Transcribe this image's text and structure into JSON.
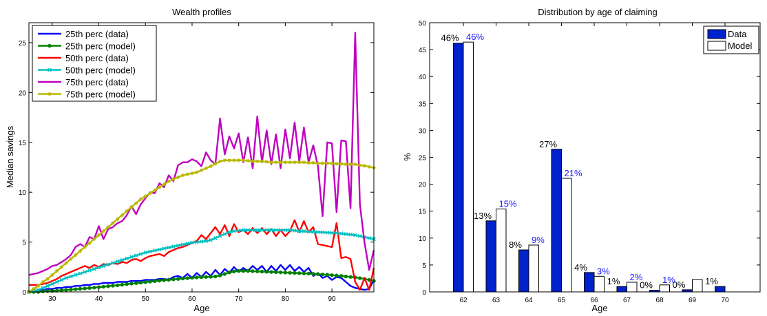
{
  "chart_data": [
    {
      "type": "line",
      "title": "Wealth profiles",
      "xlabel": "Age",
      "ylabel": "Median savings",
      "xlim": [
        25,
        99
      ],
      "ylim": [
        0,
        27
      ],
      "xticks": [
        30,
        40,
        50,
        60,
        70,
        80,
        90
      ],
      "yticks": [
        0,
        5,
        10,
        15,
        20,
        25
      ],
      "grid": false,
      "legend_position": "top-left",
      "series": [
        {
          "name": "25th perc (data)",
          "color": "#0000ff",
          "marker": "none",
          "x": [
            25,
            26,
            27,
            28,
            29,
            30,
            31,
            32,
            33,
            34,
            35,
            36,
            37,
            38,
            39,
            40,
            41,
            42,
            43,
            44,
            45,
            46,
            47,
            48,
            49,
            50,
            51,
            52,
            53,
            54,
            55,
            56,
            57,
            58,
            59,
            60,
            61,
            62,
            63,
            64,
            65,
            66,
            67,
            68,
            69,
            70,
            71,
            72,
            73,
            74,
            75,
            76,
            77,
            78,
            79,
            80,
            81,
            82,
            83,
            84,
            85,
            86,
            87,
            88,
            89,
            90,
            91,
            92,
            93,
            94,
            95,
            96,
            97,
            98,
            99
          ],
          "y": [
            0.1,
            0.1,
            0.2,
            0.2,
            0.3,
            0.3,
            0.4,
            0.4,
            0.5,
            0.5,
            0.6,
            0.6,
            0.7,
            0.7,
            0.8,
            0.8,
            0.9,
            0.9,
            0.9,
            1.0,
            1.0,
            1.0,
            1.1,
            1.1,
            1.1,
            1.2,
            1.2,
            1.2,
            1.3,
            1.3,
            1.2,
            1.5,
            1.6,
            1.4,
            1.8,
            1.4,
            1.9,
            1.5,
            2.0,
            1.6,
            2.2,
            1.7,
            2.3,
            1.9,
            2.5,
            2.0,
            2.4,
            2.1,
            2.6,
            2.2,
            2.6,
            2.0,
            2.6,
            2.1,
            2.7,
            2.2,
            2.7,
            2.1,
            2.5,
            2.0,
            2.4,
            1.6,
            1.9,
            1.4,
            1.6,
            1.2,
            1.5,
            1.4,
            1.0,
            0.6,
            0.4,
            0.3,
            0.2,
            0.3,
            1.2
          ]
        },
        {
          "name": "25th perc (model)",
          "color": "#008000",
          "marker": "circle",
          "x": [
            25,
            26,
            27,
            28,
            29,
            30,
            31,
            32,
            33,
            34,
            35,
            36,
            37,
            38,
            39,
            40,
            41,
            42,
            43,
            44,
            45,
            46,
            47,
            48,
            49,
            50,
            51,
            52,
            53,
            54,
            55,
            56,
            57,
            58,
            59,
            60,
            61,
            62,
            63,
            64,
            65,
            66,
            67,
            68,
            69,
            70,
            71,
            72,
            73,
            74,
            75,
            76,
            77,
            78,
            79,
            80,
            81,
            82,
            83,
            84,
            85,
            86,
            87,
            88,
            89,
            90,
            91,
            92,
            93,
            94,
            95,
            96,
            97,
            98,
            99
          ],
          "y": [
            0.0,
            0.0,
            0.0,
            0.05,
            0.08,
            0.1,
            0.13,
            0.16,
            0.2,
            0.23,
            0.27,
            0.31,
            0.35,
            0.39,
            0.43,
            0.48,
            0.52,
            0.57,
            0.62,
            0.67,
            0.72,
            0.78,
            0.83,
            0.88,
            0.93,
            0.98,
            1.03,
            1.08,
            1.13,
            1.18,
            1.22,
            1.26,
            1.3,
            1.34,
            1.38,
            1.42,
            1.45,
            1.48,
            1.5,
            1.52,
            1.55,
            1.65,
            1.8,
            1.95,
            2.05,
            2.1,
            2.1,
            2.1,
            2.08,
            2.06,
            2.04,
            2.02,
            2.0,
            1.98,
            1.96,
            1.94,
            1.92,
            1.9,
            1.88,
            1.86,
            1.84,
            1.81,
            1.78,
            1.75,
            1.72,
            1.68,
            1.64,
            1.6,
            1.55,
            1.5,
            1.45,
            1.38,
            1.3,
            1.2,
            1.1
          ]
        },
        {
          "name": "50th perc (data)",
          "color": "#ff0000",
          "marker": "none",
          "x": [
            25,
            26,
            27,
            28,
            29,
            30,
            31,
            32,
            33,
            34,
            35,
            36,
            37,
            38,
            39,
            40,
            41,
            42,
            43,
            44,
            45,
            46,
            47,
            48,
            49,
            50,
            51,
            52,
            53,
            54,
            55,
            56,
            57,
            58,
            59,
            60,
            61,
            62,
            63,
            64,
            65,
            66,
            67,
            68,
            69,
            70,
            71,
            72,
            73,
            74,
            75,
            76,
            77,
            78,
            79,
            80,
            81,
            82,
            83,
            84,
            85,
            86,
            87,
            88,
            89,
            90,
            91,
            92,
            93,
            94,
            95,
            96,
            97,
            98,
            99
          ],
          "y": [
            0.7,
            0.7,
            0.7,
            0.8,
            0.9,
            1.1,
            1.3,
            1.6,
            1.8,
            2.0,
            2.2,
            2.4,
            2.6,
            2.4,
            2.7,
            2.5,
            2.8,
            2.7,
            2.9,
            2.8,
            3.0,
            2.9,
            3.2,
            3.3,
            3.1,
            3.4,
            3.6,
            3.7,
            3.8,
            3.6,
            4.0,
            4.2,
            4.4,
            4.5,
            4.7,
            4.9,
            5.1,
            5.7,
            5.3,
            5.9,
            6.5,
            5.8,
            6.7,
            5.6,
            6.8,
            6.0,
            6.2,
            5.8,
            6.4,
            5.9,
            6.4,
            5.8,
            6.3,
            5.6,
            6.2,
            5.6,
            6.1,
            7.2,
            6.0,
            7.1,
            6.0,
            6.5,
            4.8,
            4.7,
            4.6,
            4.5,
            6.9,
            3.4,
            3.5,
            3.3,
            1.0,
            0.2,
            1.4,
            0.2,
            2.4
          ]
        },
        {
          "name": "50th perc (model)",
          "color": "#00c0c0",
          "marker": "x",
          "x": [
            25,
            26,
            27,
            28,
            29,
            30,
            31,
            32,
            33,
            34,
            35,
            36,
            37,
            38,
            39,
            40,
            41,
            42,
            43,
            44,
            45,
            46,
            47,
            48,
            49,
            50,
            51,
            52,
            53,
            54,
            55,
            56,
            57,
            58,
            59,
            60,
            61,
            62,
            63,
            64,
            65,
            66,
            67,
            68,
            69,
            70,
            71,
            72,
            73,
            74,
            75,
            76,
            77,
            78,
            79,
            80,
            81,
            82,
            83,
            84,
            85,
            86,
            87,
            88,
            89,
            90,
            91,
            92,
            93,
            94,
            95,
            96,
            97,
            98,
            99
          ],
          "y": [
            0.0,
            0.1,
            0.2,
            0.4,
            0.6,
            0.8,
            1.0,
            1.2,
            1.4,
            1.55,
            1.7,
            1.85,
            2.0,
            2.15,
            2.3,
            2.45,
            2.6,
            2.75,
            2.9,
            3.05,
            3.2,
            3.35,
            3.5,
            3.65,
            3.8,
            3.95,
            4.05,
            4.15,
            4.25,
            4.35,
            4.45,
            4.55,
            4.65,
            4.75,
            4.85,
            4.95,
            5.0,
            5.05,
            5.1,
            5.2,
            5.4,
            5.6,
            5.8,
            6.0,
            6.1,
            6.15,
            6.2,
            6.2,
            6.2,
            6.2,
            6.2,
            6.2,
            6.2,
            6.2,
            6.2,
            6.2,
            6.2,
            6.15,
            6.1,
            6.08,
            6.05,
            6.02,
            6.0,
            5.98,
            5.95,
            5.92,
            5.9,
            5.85,
            5.8,
            5.75,
            5.7,
            5.6,
            5.5,
            5.4,
            5.3
          ]
        },
        {
          "name": "75th perc (data)",
          "color": "#c000c0",
          "marker": "none",
          "x": [
            25,
            26,
            27,
            28,
            29,
            30,
            31,
            32,
            33,
            34,
            35,
            36,
            37,
            38,
            39,
            40,
            41,
            42,
            43,
            44,
            45,
            46,
            47,
            48,
            49,
            50,
            51,
            52,
            53,
            54,
            55,
            56,
            57,
            58,
            59,
            60,
            61,
            62,
            63,
            64,
            65,
            66,
            67,
            68,
            69,
            70,
            71,
            72,
            73,
            74,
            75,
            76,
            77,
            78,
            79,
            80,
            81,
            82,
            83,
            84,
            85,
            86,
            87,
            88,
            89,
            90,
            91,
            92,
            93,
            94,
            95,
            96,
            97,
            98,
            99
          ],
          "y": [
            1.7,
            1.8,
            1.9,
            2.1,
            2.3,
            2.6,
            2.7,
            3.0,
            3.3,
            3.7,
            4.5,
            4.8,
            4.5,
            5.5,
            5.3,
            6.6,
            5.3,
            6.3,
            6.5,
            6.9,
            7.1,
            7.7,
            8.6,
            7.8,
            8.8,
            9.4,
            10.0,
            9.9,
            10.9,
            10.5,
            11.7,
            11.1,
            12.7,
            13.0,
            13.0,
            13.3,
            13.1,
            12.6,
            14.0,
            13.2,
            12.8,
            17.4,
            13.8,
            15.6,
            14.4,
            15.9,
            13.0,
            15.5,
            12.4,
            17.6,
            13.0,
            16.2,
            12.8,
            15.8,
            12.4,
            16.3,
            13.4,
            17.0,
            13.1,
            16.5,
            13.0,
            14.7,
            12.6,
            7.6,
            15.0,
            14.9,
            8.0,
            15.2,
            15.1,
            8.4,
            26.0,
            8.8,
            4.9,
            2.2,
            4.2
          ]
        },
        {
          "name": "75th perc (model)",
          "color": "#b8b800",
          "marker": "star",
          "x": [
            25,
            26,
            27,
            28,
            29,
            30,
            31,
            32,
            33,
            34,
            35,
            36,
            37,
            38,
            39,
            40,
            41,
            42,
            43,
            44,
            45,
            46,
            47,
            48,
            49,
            50,
            51,
            52,
            53,
            54,
            55,
            56,
            57,
            58,
            59,
            60,
            61,
            62,
            63,
            64,
            65,
            66,
            67,
            68,
            69,
            70,
            71,
            72,
            73,
            74,
            75,
            76,
            77,
            78,
            79,
            80,
            81,
            82,
            83,
            84,
            85,
            86,
            87,
            88,
            89,
            90,
            91,
            92,
            93,
            94,
            95,
            96,
            97,
            98,
            99
          ],
          "y": [
            0.0,
            0.3,
            0.6,
            1.0,
            1.3,
            1.7,
            2.1,
            2.5,
            2.9,
            3.3,
            3.7,
            4.1,
            4.5,
            4.9,
            5.3,
            5.7,
            6.1,
            6.5,
            6.9,
            7.3,
            7.7,
            8.1,
            8.5,
            8.9,
            9.3,
            9.6,
            9.9,
            10.2,
            10.5,
            10.8,
            11.1,
            11.3,
            11.5,
            11.7,
            11.8,
            11.9,
            12.0,
            12.2,
            12.4,
            12.6,
            12.85,
            13.1,
            13.2,
            13.2,
            13.2,
            13.2,
            13.2,
            13.15,
            13.1,
            13.1,
            13.1,
            13.05,
            13.0,
            13.0,
            13.0,
            13.0,
            13.0,
            13.0,
            13.0,
            13.0,
            12.95,
            12.95,
            12.9,
            12.9,
            12.9,
            12.9,
            12.85,
            12.85,
            12.8,
            12.8,
            12.8,
            12.7,
            12.65,
            12.55,
            12.45
          ]
        }
      ]
    },
    {
      "type": "bar",
      "title": "Distribution by age of claiming",
      "xlabel": "Age",
      "ylabel": "%",
      "ylim": [
        0,
        50
      ],
      "yticks": [
        0,
        5,
        10,
        15,
        20,
        25,
        30,
        35,
        40,
        45,
        50
      ],
      "grid": false,
      "legend_position": "top-right",
      "categories": [
        "62",
        "63",
        "64",
        "65",
        "66",
        "67",
        "68",
        "69",
        "70"
      ],
      "series": [
        {
          "name": "Data",
          "color": "#0022cc",
          "label_color": "#000000",
          "values": [
            46.2,
            13.2,
            7.8,
            26.5,
            3.6,
            1.0,
            0.3,
            0.4,
            1.0
          ],
          "labels": [
            "46%",
            "13%",
            "8%",
            "27%",
            "4%",
            "1%",
            "0%",
            "0%",
            "1%"
          ]
        },
        {
          "name": "Model",
          "color": "#ffffff",
          "label_color": "#1a1aff",
          "values": [
            46.4,
            15.4,
            8.7,
            21.1,
            2.9,
            1.8,
            1.3,
            2.3,
            0
          ],
          "labels": [
            "46%",
            "15%",
            "9%",
            "21%",
            "3%",
            "2%",
            "1%",
            "",
            ""
          ]
        }
      ]
    }
  ]
}
